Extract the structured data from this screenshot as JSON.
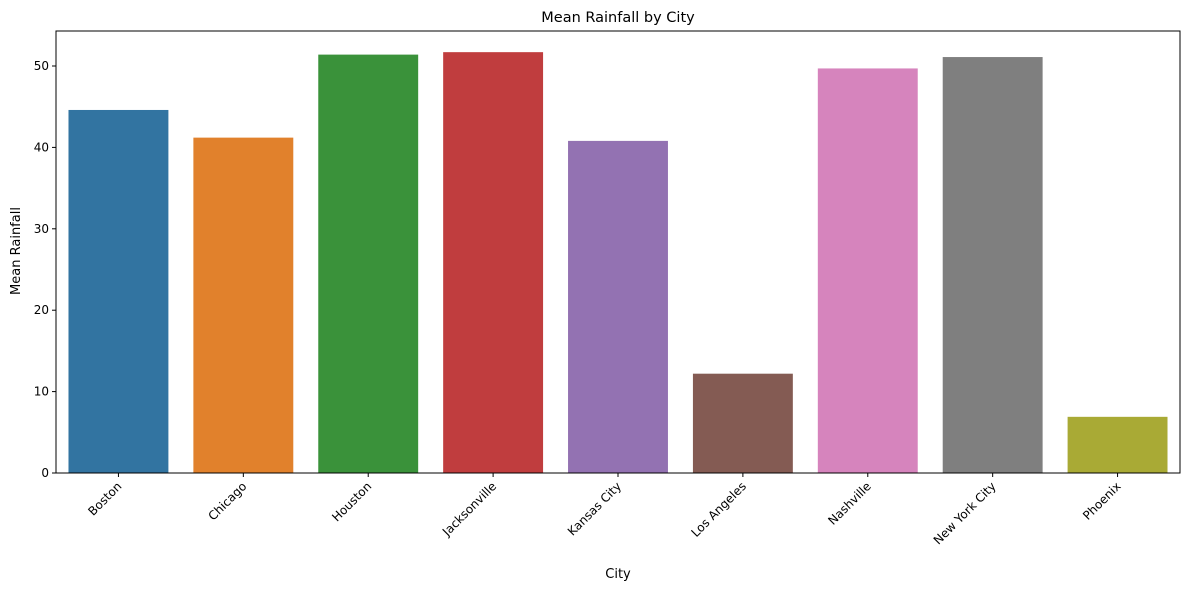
{
  "chart_data": {
    "type": "bar",
    "title": "Mean Rainfall by City",
    "xlabel": "City",
    "ylabel": "Mean Rainfall",
    "categories": [
      "Boston",
      "Chicago",
      "Houston",
      "Jacksonville",
      "Kansas City",
      "Los Angeles",
      "Nashville",
      "New York City",
      "Phoenix"
    ],
    "values": [
      44.6,
      41.2,
      51.4,
      51.7,
      40.8,
      12.2,
      49.7,
      51.1,
      6.9
    ],
    "colors": [
      "#3274a1",
      "#e1812c",
      "#3a923a",
      "#c03d3e",
      "#9372b2",
      "#845b53",
      "#d684bd",
      "#7f7f7f",
      "#a9aa35"
    ],
    "yticks": [
      0,
      10,
      20,
      30,
      40,
      50
    ],
    "ylim": [
      0,
      54.3
    ],
    "grid": false,
    "x_tick_rotation": -45
  }
}
